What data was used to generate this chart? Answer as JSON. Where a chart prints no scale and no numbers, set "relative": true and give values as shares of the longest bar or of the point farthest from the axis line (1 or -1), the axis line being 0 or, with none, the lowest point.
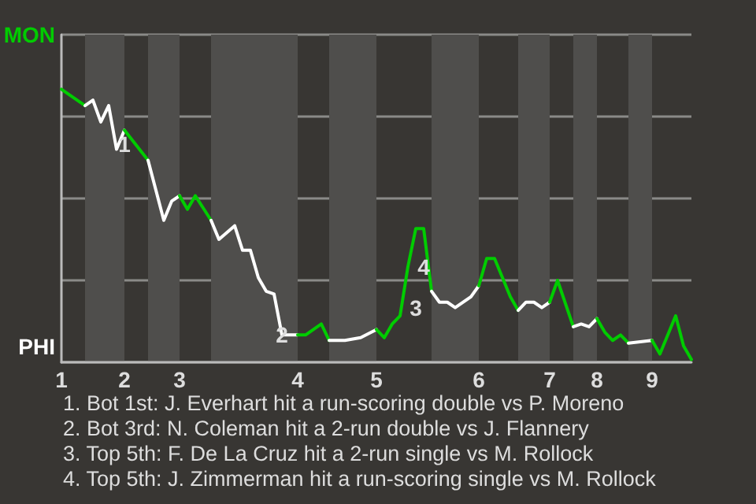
{
  "chart_data": {
    "type": "line",
    "relative": true,
    "categories": [
      "1",
      null,
      null,
      null,
      null,
      null,
      null,
      null,
      "2",
      null,
      null,
      null,
      null,
      null,
      null,
      "3",
      null,
      null,
      null,
      null,
      null,
      null,
      null,
      null,
      null,
      null,
      null,
      null,
      null,
      null,
      "4",
      null,
      null,
      null,
      null,
      null,
      null,
      null,
      null,
      null,
      "5",
      null,
      null,
      null,
      null,
      null,
      null,
      null,
      null,
      null,
      null,
      null,
      null,
      "6",
      null,
      null,
      null,
      null,
      null,
      null,
      null,
      null,
      "7",
      null,
      null,
      null,
      null,
      null,
      "8",
      null,
      null,
      null,
      null,
      null,
      null,
      "9",
      null,
      null,
      null,
      null,
      null
    ],
    "grid": "y",
    "marker": "none",
    "line_style": "solid",
    "series": [
      {
        "color": "#00cc00",
        "values": [
          1,
          null,
          null,
          0.94,
          null,
          null,
          null,
          null,
          null,
          null,
          null,
          null,
          null,
          null,
          null,
          null,
          null,
          null,
          null,
          null,
          null,
          null,
          null,
          null,
          null,
          null,
          null,
          null,
          null,
          null,
          null,
          null,
          null,
          null,
          null,
          null,
          null,
          null,
          null,
          null,
          null,
          null,
          null,
          null,
          null,
          null,
          null,
          null,
          null,
          null,
          null,
          null,
          null,
          null,
          null,
          null,
          null,
          null,
          null,
          null,
          null,
          null,
          null,
          null,
          null,
          null,
          null,
          null,
          null,
          null,
          null,
          null,
          null,
          null,
          null,
          null,
          null,
          null,
          null,
          null,
          null
        ]
      },
      {
        "color": "#ffffff",
        "values": [
          null,
          null,
          null,
          0.94,
          0.96,
          0.88,
          0.94,
          0.78,
          0.85,
          null,
          null,
          null,
          null,
          null,
          null,
          null,
          null,
          null,
          null,
          null,
          null,
          null,
          null,
          null,
          null,
          null,
          null,
          null,
          null,
          null,
          null,
          null,
          null,
          null,
          null,
          null,
          null,
          null,
          null,
          null,
          null,
          null,
          null,
          null,
          null,
          null,
          null,
          null,
          null,
          null,
          null,
          null,
          null,
          null,
          null,
          null,
          null,
          null,
          null,
          null,
          null,
          null,
          null,
          null,
          null,
          null,
          null,
          null,
          null,
          null,
          null,
          null,
          null,
          null,
          null,
          null,
          null,
          null,
          null,
          null,
          null
        ]
      },
      {
        "color": "#00cc00",
        "values": [
          null,
          null,
          null,
          null,
          null,
          null,
          null,
          null,
          0.85,
          null,
          null,
          0.74,
          null,
          null,
          null,
          null,
          null,
          null,
          null,
          null,
          null,
          null,
          null,
          null,
          null,
          null,
          null,
          null,
          null,
          null,
          null,
          null,
          null,
          null,
          null,
          null,
          null,
          null,
          null,
          null,
          null,
          null,
          null,
          null,
          null,
          null,
          null,
          null,
          null,
          null,
          null,
          null,
          null,
          null,
          null,
          null,
          null,
          null,
          null,
          null,
          null,
          null,
          null,
          null,
          null,
          null,
          null,
          null,
          null,
          null,
          null,
          null,
          null,
          null,
          null,
          null,
          null,
          null,
          null,
          null,
          null
        ]
      },
      {
        "color": "#ffffff",
        "values": [
          null,
          null,
          null,
          null,
          null,
          null,
          null,
          null,
          null,
          null,
          null,
          0.74,
          null,
          0.52,
          0.59,
          0.61,
          null,
          null,
          null,
          null,
          null,
          null,
          null,
          null,
          null,
          null,
          null,
          null,
          null,
          null,
          null,
          null,
          null,
          null,
          null,
          null,
          null,
          null,
          null,
          null,
          null,
          null,
          null,
          null,
          null,
          null,
          null,
          null,
          null,
          null,
          null,
          null,
          null,
          null,
          null,
          null,
          null,
          null,
          null,
          null,
          null,
          null,
          null,
          null,
          null,
          null,
          null,
          null,
          null,
          null,
          null,
          null,
          null,
          null,
          null,
          null,
          null,
          null,
          null,
          null,
          null
        ]
      },
      {
        "color": "#00cc00",
        "values": [
          null,
          null,
          null,
          null,
          null,
          null,
          null,
          null,
          null,
          null,
          null,
          null,
          null,
          null,
          null,
          0.61,
          0.56,
          0.61,
          null,
          0.52,
          null,
          null,
          null,
          null,
          null,
          null,
          null,
          null,
          null,
          null,
          null,
          null,
          null,
          null,
          null,
          null,
          null,
          null,
          null,
          null,
          null,
          null,
          null,
          null,
          null,
          null,
          null,
          null,
          null,
          null,
          null,
          null,
          null,
          null,
          null,
          null,
          null,
          null,
          null,
          null,
          null,
          null,
          null,
          null,
          null,
          null,
          null,
          null,
          null,
          null,
          null,
          null,
          null,
          null,
          null,
          null,
          null,
          null,
          null,
          null,
          null
        ]
      },
      {
        "color": "#ffffff",
        "values": [
          null,
          null,
          null,
          null,
          null,
          null,
          null,
          null,
          null,
          null,
          null,
          null,
          null,
          null,
          null,
          null,
          null,
          null,
          null,
          0.52,
          0.45,
          null,
          0.5,
          0.41,
          0.41,
          0.31,
          0.26,
          0.25,
          0.1,
          null,
          0.1,
          null,
          null,
          null,
          null,
          null,
          null,
          null,
          null,
          null,
          null,
          null,
          null,
          null,
          null,
          null,
          null,
          null,
          null,
          null,
          null,
          null,
          null,
          null,
          null,
          null,
          null,
          null,
          null,
          null,
          null,
          null,
          null,
          null,
          null,
          null,
          null,
          null,
          null,
          null,
          null,
          null,
          null,
          null,
          null,
          null,
          null,
          null,
          null,
          null,
          null
        ]
      },
      {
        "color": "#00cc00",
        "values": [
          null,
          null,
          null,
          null,
          null,
          null,
          null,
          null,
          null,
          null,
          null,
          null,
          null,
          null,
          null,
          null,
          null,
          null,
          null,
          null,
          null,
          null,
          null,
          null,
          null,
          null,
          null,
          null,
          null,
          null,
          0.1,
          0.1,
          null,
          0.14,
          0.08,
          null,
          null,
          null,
          null,
          null,
          null,
          null,
          null,
          null,
          null,
          null,
          null,
          null,
          null,
          null,
          null,
          null,
          null,
          null,
          null,
          null,
          null,
          null,
          null,
          null,
          null,
          null,
          null,
          null,
          null,
          null,
          null,
          null,
          null,
          null,
          null,
          null,
          null,
          null,
          null,
          null,
          null,
          null,
          null,
          null,
          null
        ]
      },
      {
        "color": "#ffffff",
        "values": [
          null,
          null,
          null,
          null,
          null,
          null,
          null,
          null,
          null,
          null,
          null,
          null,
          null,
          null,
          null,
          null,
          null,
          null,
          null,
          null,
          null,
          null,
          null,
          null,
          null,
          null,
          null,
          null,
          null,
          null,
          null,
          null,
          null,
          null,
          0.08,
          null,
          0.08,
          null,
          0.09,
          null,
          0.12,
          null,
          null,
          null,
          null,
          null,
          null,
          null,
          null,
          null,
          null,
          null,
          null,
          null,
          null,
          null,
          null,
          null,
          null,
          null,
          null,
          null,
          null,
          null,
          null,
          null,
          null,
          null,
          null,
          null,
          null,
          null,
          null,
          null,
          null,
          null,
          null,
          null,
          null,
          null,
          null
        ]
      },
      {
        "color": "#00cc00",
        "values": [
          null,
          null,
          null,
          null,
          null,
          null,
          null,
          null,
          null,
          null,
          null,
          null,
          null,
          null,
          null,
          null,
          null,
          null,
          null,
          null,
          null,
          null,
          null,
          null,
          null,
          null,
          null,
          null,
          null,
          null,
          null,
          null,
          null,
          null,
          null,
          null,
          null,
          null,
          null,
          null,
          0.12,
          0.09,
          0.14,
          0.17,
          0.35,
          0.49,
          0.49,
          0.26,
          null,
          null,
          null,
          null,
          null,
          null,
          null,
          null,
          null,
          null,
          null,
          null,
          null,
          null,
          null,
          null,
          null,
          null,
          null,
          null,
          null,
          null,
          null,
          null,
          null,
          null,
          null,
          null,
          null,
          null,
          null,
          null,
          null
        ]
      },
      {
        "color": "#ffffff",
        "values": [
          null,
          null,
          null,
          null,
          null,
          null,
          null,
          null,
          null,
          null,
          null,
          null,
          null,
          null,
          null,
          null,
          null,
          null,
          null,
          null,
          null,
          null,
          null,
          null,
          null,
          null,
          null,
          null,
          null,
          null,
          null,
          null,
          null,
          null,
          null,
          null,
          null,
          null,
          null,
          null,
          null,
          null,
          null,
          null,
          null,
          null,
          null,
          0.26,
          0.22,
          0.22,
          0.2,
          null,
          0.24,
          0.28,
          null,
          null,
          null,
          null,
          null,
          null,
          null,
          null,
          null,
          null,
          null,
          null,
          null,
          null,
          null,
          null,
          null,
          null,
          null,
          null,
          null,
          null,
          null,
          null,
          null,
          null,
          null
        ]
      },
      {
        "color": "#00cc00",
        "values": [
          null,
          null,
          null,
          null,
          null,
          null,
          null,
          null,
          null,
          null,
          null,
          null,
          null,
          null,
          null,
          null,
          null,
          null,
          null,
          null,
          null,
          null,
          null,
          null,
          null,
          null,
          null,
          null,
          null,
          null,
          null,
          null,
          null,
          null,
          null,
          null,
          null,
          null,
          null,
          null,
          null,
          null,
          null,
          null,
          null,
          null,
          null,
          null,
          null,
          null,
          null,
          null,
          null,
          0.28,
          0.38,
          0.38,
          null,
          0.24,
          0.19,
          null,
          null,
          null,
          null,
          null,
          null,
          null,
          null,
          null,
          null,
          null,
          null,
          null,
          null,
          null,
          null,
          null,
          null,
          null,
          null,
          null,
          null
        ]
      },
      {
        "color": "#ffffff",
        "values": [
          null,
          null,
          null,
          null,
          null,
          null,
          null,
          null,
          null,
          null,
          null,
          null,
          null,
          null,
          null,
          null,
          null,
          null,
          null,
          null,
          null,
          null,
          null,
          null,
          null,
          null,
          null,
          null,
          null,
          null,
          null,
          null,
          null,
          null,
          null,
          null,
          null,
          null,
          null,
          null,
          null,
          null,
          null,
          null,
          null,
          null,
          null,
          null,
          null,
          null,
          null,
          null,
          null,
          null,
          null,
          null,
          null,
          null,
          0.19,
          0.22,
          0.22,
          0.2,
          0.22,
          null,
          null,
          null,
          null,
          null,
          null,
          null,
          null,
          null,
          null,
          null,
          null,
          null,
          null,
          null,
          null,
          null,
          null
        ]
      },
      {
        "color": "#00cc00",
        "values": [
          null,
          null,
          null,
          null,
          null,
          null,
          null,
          null,
          null,
          null,
          null,
          null,
          null,
          null,
          null,
          null,
          null,
          null,
          null,
          null,
          null,
          null,
          null,
          null,
          null,
          null,
          null,
          null,
          null,
          null,
          null,
          null,
          null,
          null,
          null,
          null,
          null,
          null,
          null,
          null,
          null,
          null,
          null,
          null,
          null,
          null,
          null,
          null,
          null,
          null,
          null,
          null,
          null,
          null,
          null,
          null,
          null,
          null,
          null,
          null,
          null,
          null,
          0.22,
          0.3,
          null,
          0.13,
          null,
          null,
          null,
          null,
          null,
          null,
          null,
          null,
          null,
          null,
          null,
          null,
          null,
          null,
          null
        ]
      },
      {
        "color": "#ffffff",
        "values": [
          null,
          null,
          null,
          null,
          null,
          null,
          null,
          null,
          null,
          null,
          null,
          null,
          null,
          null,
          null,
          null,
          null,
          null,
          null,
          null,
          null,
          null,
          null,
          null,
          null,
          null,
          null,
          null,
          null,
          null,
          null,
          null,
          null,
          null,
          null,
          null,
          null,
          null,
          null,
          null,
          null,
          null,
          null,
          null,
          null,
          null,
          null,
          null,
          null,
          null,
          null,
          null,
          null,
          null,
          null,
          null,
          null,
          null,
          null,
          null,
          null,
          null,
          null,
          null,
          null,
          0.13,
          0.14,
          0.13,
          0.16,
          null,
          null,
          null,
          null,
          null,
          null,
          null,
          null,
          null,
          null,
          null,
          null
        ]
      },
      {
        "color": "#00cc00",
        "values": [
          null,
          null,
          null,
          null,
          null,
          null,
          null,
          null,
          null,
          null,
          null,
          null,
          null,
          null,
          null,
          null,
          null,
          null,
          null,
          null,
          null,
          null,
          null,
          null,
          null,
          null,
          null,
          null,
          null,
          null,
          null,
          null,
          null,
          null,
          null,
          null,
          null,
          null,
          null,
          null,
          null,
          null,
          null,
          null,
          null,
          null,
          null,
          null,
          null,
          null,
          null,
          null,
          null,
          null,
          null,
          null,
          null,
          null,
          null,
          null,
          null,
          null,
          null,
          null,
          null,
          null,
          null,
          null,
          0.16,
          0.11,
          0.08,
          0.1,
          0.07,
          null,
          null,
          null,
          null,
          null,
          null,
          null,
          null
        ]
      },
      {
        "color": "#ffffff",
        "values": [
          null,
          null,
          null,
          null,
          null,
          null,
          null,
          null,
          null,
          null,
          null,
          null,
          null,
          null,
          null,
          null,
          null,
          null,
          null,
          null,
          null,
          null,
          null,
          null,
          null,
          null,
          null,
          null,
          null,
          null,
          null,
          null,
          null,
          null,
          null,
          null,
          null,
          null,
          null,
          null,
          null,
          null,
          null,
          null,
          null,
          null,
          null,
          null,
          null,
          null,
          null,
          null,
          null,
          null,
          null,
          null,
          null,
          null,
          null,
          null,
          null,
          null,
          null,
          null,
          null,
          null,
          null,
          null,
          null,
          null,
          null,
          null,
          0.07,
          null,
          null,
          0.08,
          null,
          null,
          null,
          null,
          null
        ]
      },
      {
        "color": "#00cc00",
        "values": [
          null,
          null,
          null,
          null,
          null,
          null,
          null,
          null,
          null,
          null,
          null,
          null,
          null,
          null,
          null,
          null,
          null,
          null,
          null,
          null,
          null,
          null,
          null,
          null,
          null,
          null,
          null,
          null,
          null,
          null,
          null,
          null,
          null,
          null,
          null,
          null,
          null,
          null,
          null,
          null,
          null,
          null,
          null,
          null,
          null,
          null,
          null,
          null,
          null,
          null,
          null,
          null,
          null,
          null,
          null,
          null,
          null,
          null,
          null,
          null,
          null,
          null,
          null,
          null,
          null,
          null,
          null,
          null,
          null,
          null,
          null,
          null,
          null,
          null,
          null,
          0.08,
          0.03,
          null,
          0.17,
          0.06,
          0.01
        ]
      }
    ],
    "annotations": [
      "MON",
      "PHI",
      "1",
      "2",
      "3",
      "4",
      "1. Bot 1st: J. Everhart hit a run-scoring double vs P. Moreno",
      "2. Bot 3rd: N. Coleman hit a 2-run double vs J. Flannery",
      "3. Top 5th: F. De La Cruz hit a 2-run single vs M. Rollock",
      "4. Top 5th: J. Zimmerman hit a run-scoring single vs M. Rollock"
    ]
  }
}
